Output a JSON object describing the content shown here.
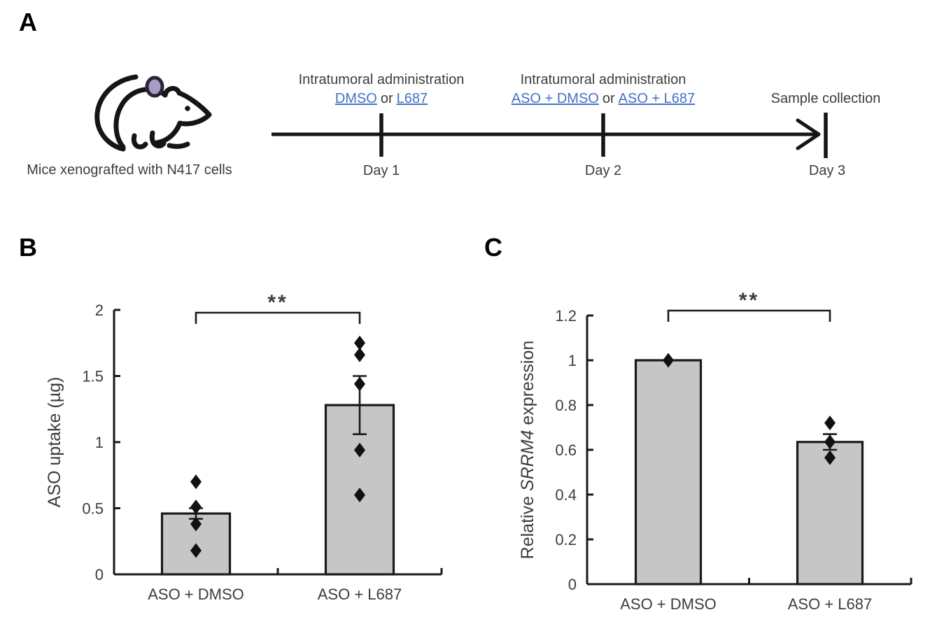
{
  "figure": {
    "panel_labels": [
      "A",
      "B",
      "C"
    ]
  },
  "panel_a": {
    "mouse_caption": "Mice xenografted with N417 cells",
    "days": [
      "Day 1",
      "Day 2",
      "Day 3"
    ],
    "events": [
      {
        "title": "Intratumoral administration",
        "link1": "DMSO",
        "connector": "or",
        "link2": "L687"
      },
      {
        "title": "Intratumoral administration",
        "link1": "ASO + DMSO",
        "connector": "or",
        "link2": "ASO + L687"
      },
      {
        "text": "Sample collection"
      }
    ]
  },
  "style": {
    "link_color": "#4472C4",
    "bar_fill": "#C6C6C6",
    "ink": "#1a1a1a",
    "text_color": "#3d3d3d",
    "tumor_fill": "#A89BC4",
    "tumor_stroke": "#2a2437"
  },
  "chart_data": [
    {
      "panel": "B",
      "type": "bar",
      "categories": [
        "ASO + DMSO",
        "ASO + L687"
      ],
      "values": [
        0.46,
        1.28
      ],
      "error_low": [
        0.42,
        1.06
      ],
      "error_high": [
        0.5,
        1.5
      ],
      "points": [
        [
          0.7,
          0.51,
          0.38,
          0.18
        ],
        [
          1.75,
          1.66,
          1.44,
          0.94,
          0.6
        ]
      ],
      "ylabel": "ASO uptake (µg)",
      "ylabel_parts": [
        {
          "text": "ASO uptake (µg)",
          "italic": false
        }
      ],
      "ylim": [
        0,
        2
      ],
      "yticks": [
        0,
        0.5,
        1,
        1.5,
        2
      ],
      "ytick_labels": [
        "0",
        "0.5",
        "1",
        "1.5",
        "2"
      ],
      "significance": {
        "label": "**",
        "between": [
          0,
          1
        ]
      },
      "grid": false,
      "legend": "none"
    },
    {
      "panel": "C",
      "type": "bar",
      "categories": [
        "ASO + DMSO",
        "ASO + L687"
      ],
      "values": [
        1.0,
        0.635
      ],
      "error_low": [
        1.0,
        0.6
      ],
      "error_high": [
        1.0,
        0.67
      ],
      "points": [
        [
          1.0
        ],
        [
          0.72,
          0.635,
          0.565
        ]
      ],
      "ylabel": "Relative SRRM4 expression",
      "ylabel_parts": [
        {
          "text": "Relative ",
          "italic": false
        },
        {
          "text": "SRRM4",
          "italic": true
        },
        {
          "text": " expression",
          "italic": false
        }
      ],
      "ylim": [
        0,
        1.2
      ],
      "yticks": [
        0,
        0.2,
        0.4,
        0.6,
        0.8,
        1,
        1.2
      ],
      "ytick_labels": [
        "0",
        "0.2",
        "0.4",
        "0.6",
        "0.8",
        "1",
        "1.2"
      ],
      "significance": {
        "label": "**",
        "between": [
          0,
          1
        ]
      },
      "grid": false,
      "legend": "none"
    }
  ]
}
